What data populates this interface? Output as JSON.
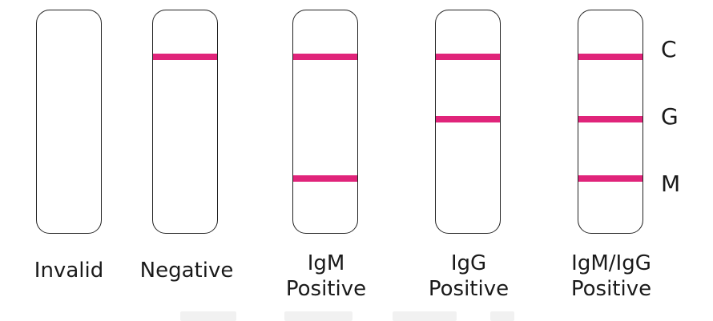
{
  "colors": {
    "band": "#e0247a",
    "outline": "#222222"
  },
  "band_labels": {
    "c": "C",
    "g": "G",
    "m": "M"
  },
  "strips": [
    {
      "result": "invalid",
      "caption": [
        "Invalid"
      ],
      "bands": {
        "c": false,
        "g": false,
        "m": false
      }
    },
    {
      "result": "negative",
      "caption": [
        "Negative"
      ],
      "bands": {
        "c": true,
        "g": false,
        "m": false
      }
    },
    {
      "result": "igm-positive",
      "caption": [
        "IgM",
        "Positive"
      ],
      "bands": {
        "c": true,
        "g": false,
        "m": true
      }
    },
    {
      "result": "igg-positive",
      "caption": [
        "IgG",
        "Positive"
      ],
      "bands": {
        "c": true,
        "g": true,
        "m": false
      }
    },
    {
      "result": "igm-igg-positive",
      "caption": [
        "IgM/IgG",
        "Positive"
      ],
      "bands": {
        "c": true,
        "g": true,
        "m": true
      }
    }
  ]
}
